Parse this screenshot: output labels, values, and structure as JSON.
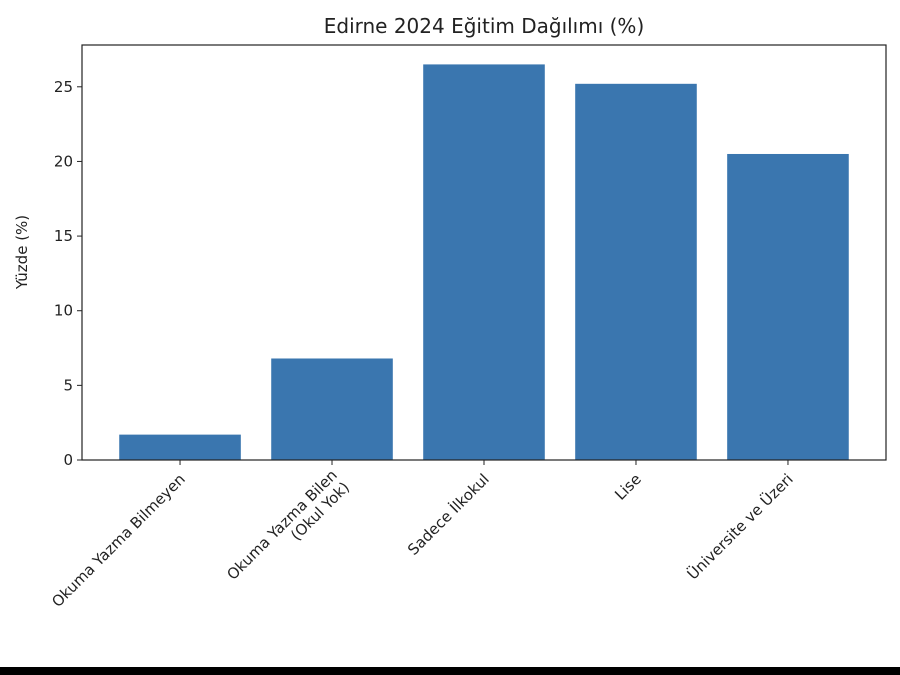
{
  "chart_data": {
    "type": "bar",
    "title": "Edirne 2024 Eğitim Dağılımı (%)",
    "y_label": "Yüzde (%)",
    "categories": [
      "Okuma Yazma Bilmeyen",
      "Okuma Yazma Bilen\n(Okul Yok)",
      "Sadece İlkokul",
      "Lise",
      "Üniversite ve Üzeri"
    ],
    "values": [
      1.7,
      6.8,
      26.5,
      25.2,
      20.5
    ],
    "color": "#3a76af",
    "ylim": [
      0,
      27.8
    ],
    "yticks": [
      0,
      5,
      10,
      15,
      20,
      25
    ],
    "grid": false
  }
}
